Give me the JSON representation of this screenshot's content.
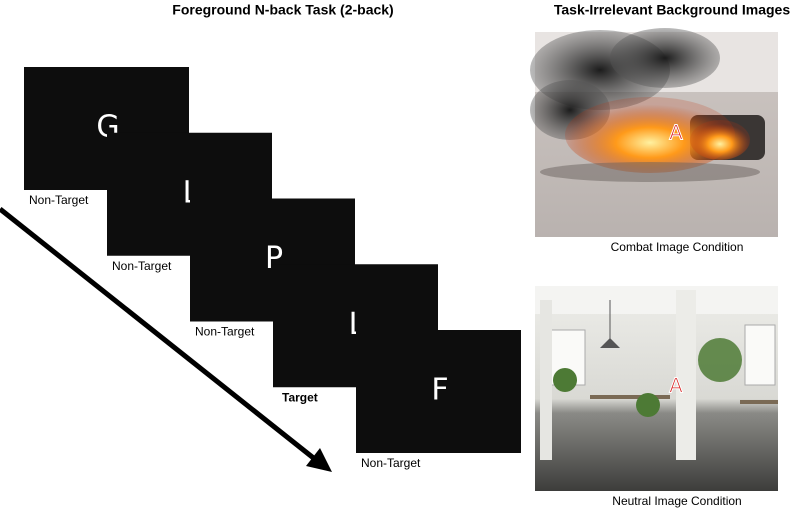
{
  "titles": {
    "left": "Foreground N-back Task (2-back)",
    "right": "Task-Irrelevant Background Images"
  },
  "cards": [
    {
      "letter": "G",
      "label": "Non-Target"
    },
    {
      "letter": "L",
      "label": "Non-Target"
    },
    {
      "letter": "P",
      "label": "Non-Target"
    },
    {
      "letter": "L",
      "label": "Target"
    },
    {
      "letter": "F",
      "label": "Non-Target"
    }
  ],
  "images": [
    {
      "caption": "Combat Image Condition",
      "overlay_letter": "A"
    },
    {
      "caption": "Neutral Image Condition",
      "overlay_letter": "A"
    }
  ]
}
